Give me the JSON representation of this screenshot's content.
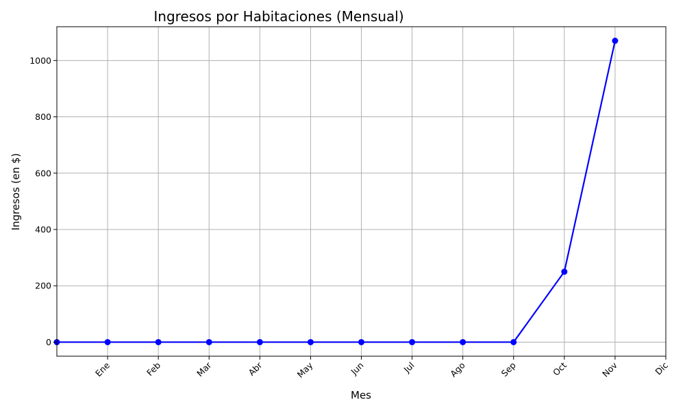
{
  "chart_data": {
    "type": "line",
    "title": "Ingresos por Habitaciones (Mensual)",
    "xlabel": "Mes",
    "ylabel": "Ingresos (en $)",
    "x_ticks": [
      "Ene",
      "Feb",
      "Mar",
      "Abr",
      "May",
      "Jun",
      "Jul",
      "Ago",
      "Sep",
      "Oct",
      "Nov",
      "Dic"
    ],
    "x_tick_positions": [
      1,
      2,
      3,
      4,
      5,
      6,
      7,
      8,
      9,
      10,
      11,
      12
    ],
    "xlim": [
      0,
      12
    ],
    "ylim": [
      -50,
      1120
    ],
    "y_ticks": [
      0,
      200,
      400,
      600,
      800,
      1000
    ],
    "grid": true,
    "series": [
      {
        "x": [
          0,
          1,
          2,
          3,
          4,
          5,
          6,
          7,
          8,
          9,
          10,
          11
        ],
        "values": [
          0,
          0,
          0,
          0,
          0,
          0,
          0,
          0,
          0,
          0,
          250,
          1070
        ],
        "color": "#0000ff",
        "marker": "circle"
      }
    ]
  }
}
